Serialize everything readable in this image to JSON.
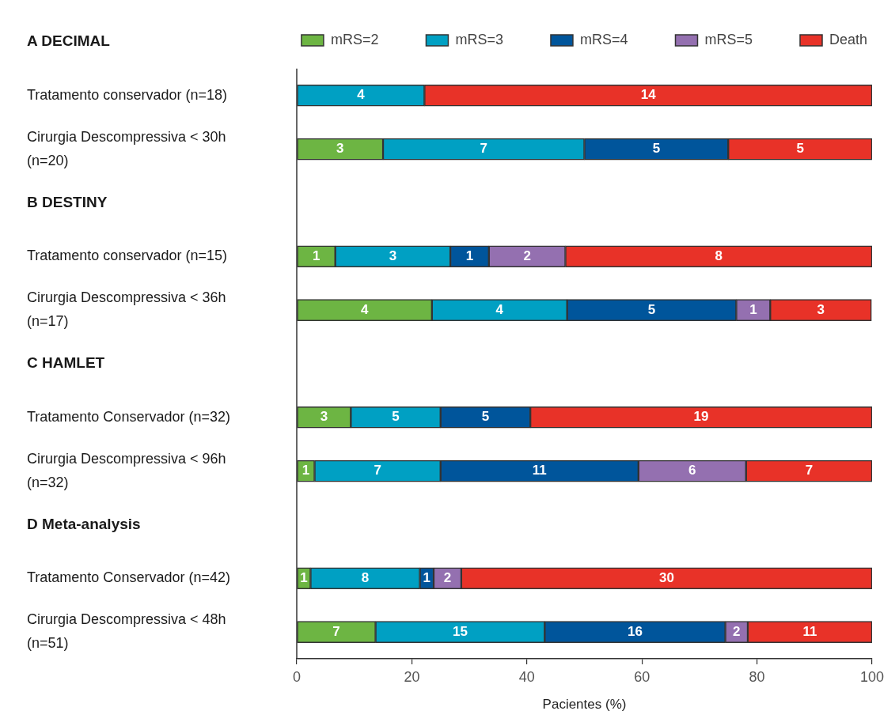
{
  "chart_data": {
    "type": "bar",
    "orientation": "horizontal",
    "stacked": true,
    "categories": [
      "A DECIMAL",
      "Tratamento conservador (n=18)",
      "Cirurgia Descompressiva < 30h (n=20)",
      "B DESTINY",
      "Tratamento conservador (n=15)",
      "Cirurgia Descompressiva < 36h (n=17)",
      "C HAMLET",
      "Tratamento Conservador (n=32)",
      "Cirurgia Descompressiva < 96h (n=32)",
      "D Meta-analysis",
      "Tratamento Conservador (n=42)",
      "Cirurgia Descompressiva < 48h (n=51)"
    ],
    "series": [
      {
        "name": "mRS=2",
        "color": "#6db543",
        "values": [
          null,
          null,
          15,
          null,
          6.7,
          23.5,
          null,
          9.4,
          3.1,
          null,
          2.4,
          13.7
        ]
      },
      {
        "name": "mRS=3",
        "color": "#00a0c3",
        "values": [
          null,
          22.2,
          35,
          null,
          20,
          23.5,
          null,
          15.6,
          21.9,
          null,
          19,
          29.4
        ]
      },
      {
        "name": "mRS=4",
        "color": "#00559b",
        "values": [
          null,
          null,
          25,
          null,
          6.7,
          29.4,
          null,
          15.6,
          34.4,
          null,
          2.4,
          31.4
        ]
      },
      {
        "name": "mRS=5",
        "color": "#9470b0",
        "values": [
          null,
          null,
          null,
          null,
          13.3,
          5.9,
          null,
          null,
          18.7,
          null,
          4.8,
          3.9
        ]
      },
      {
        "name": "Death",
        "color": "#e83228",
        "values": [
          null,
          77.8,
          25,
          null,
          53.3,
          17.6,
          null,
          59.4,
          21.9,
          null,
          71.4,
          21.6
        ]
      }
    ],
    "annotations": [
      "4",
      "14",
      "3",
      "7",
      "5",
      "5",
      "1",
      "3",
      "1",
      "2",
      "8",
      "4",
      "4",
      "5",
      "1",
      "3",
      "3",
      "5",
      "5",
      "19",
      "1",
      "7",
      "11",
      "6",
      "7",
      "1",
      "8",
      "1",
      "2",
      "30",
      "7",
      "15",
      "16",
      "2",
      "11"
    ],
    "xlim": [
      0,
      100
    ],
    "xticks": [
      0,
      20,
      40,
      60,
      80,
      100
    ],
    "xlabel": "Pacientes (%)",
    "legend": "top"
  }
}
